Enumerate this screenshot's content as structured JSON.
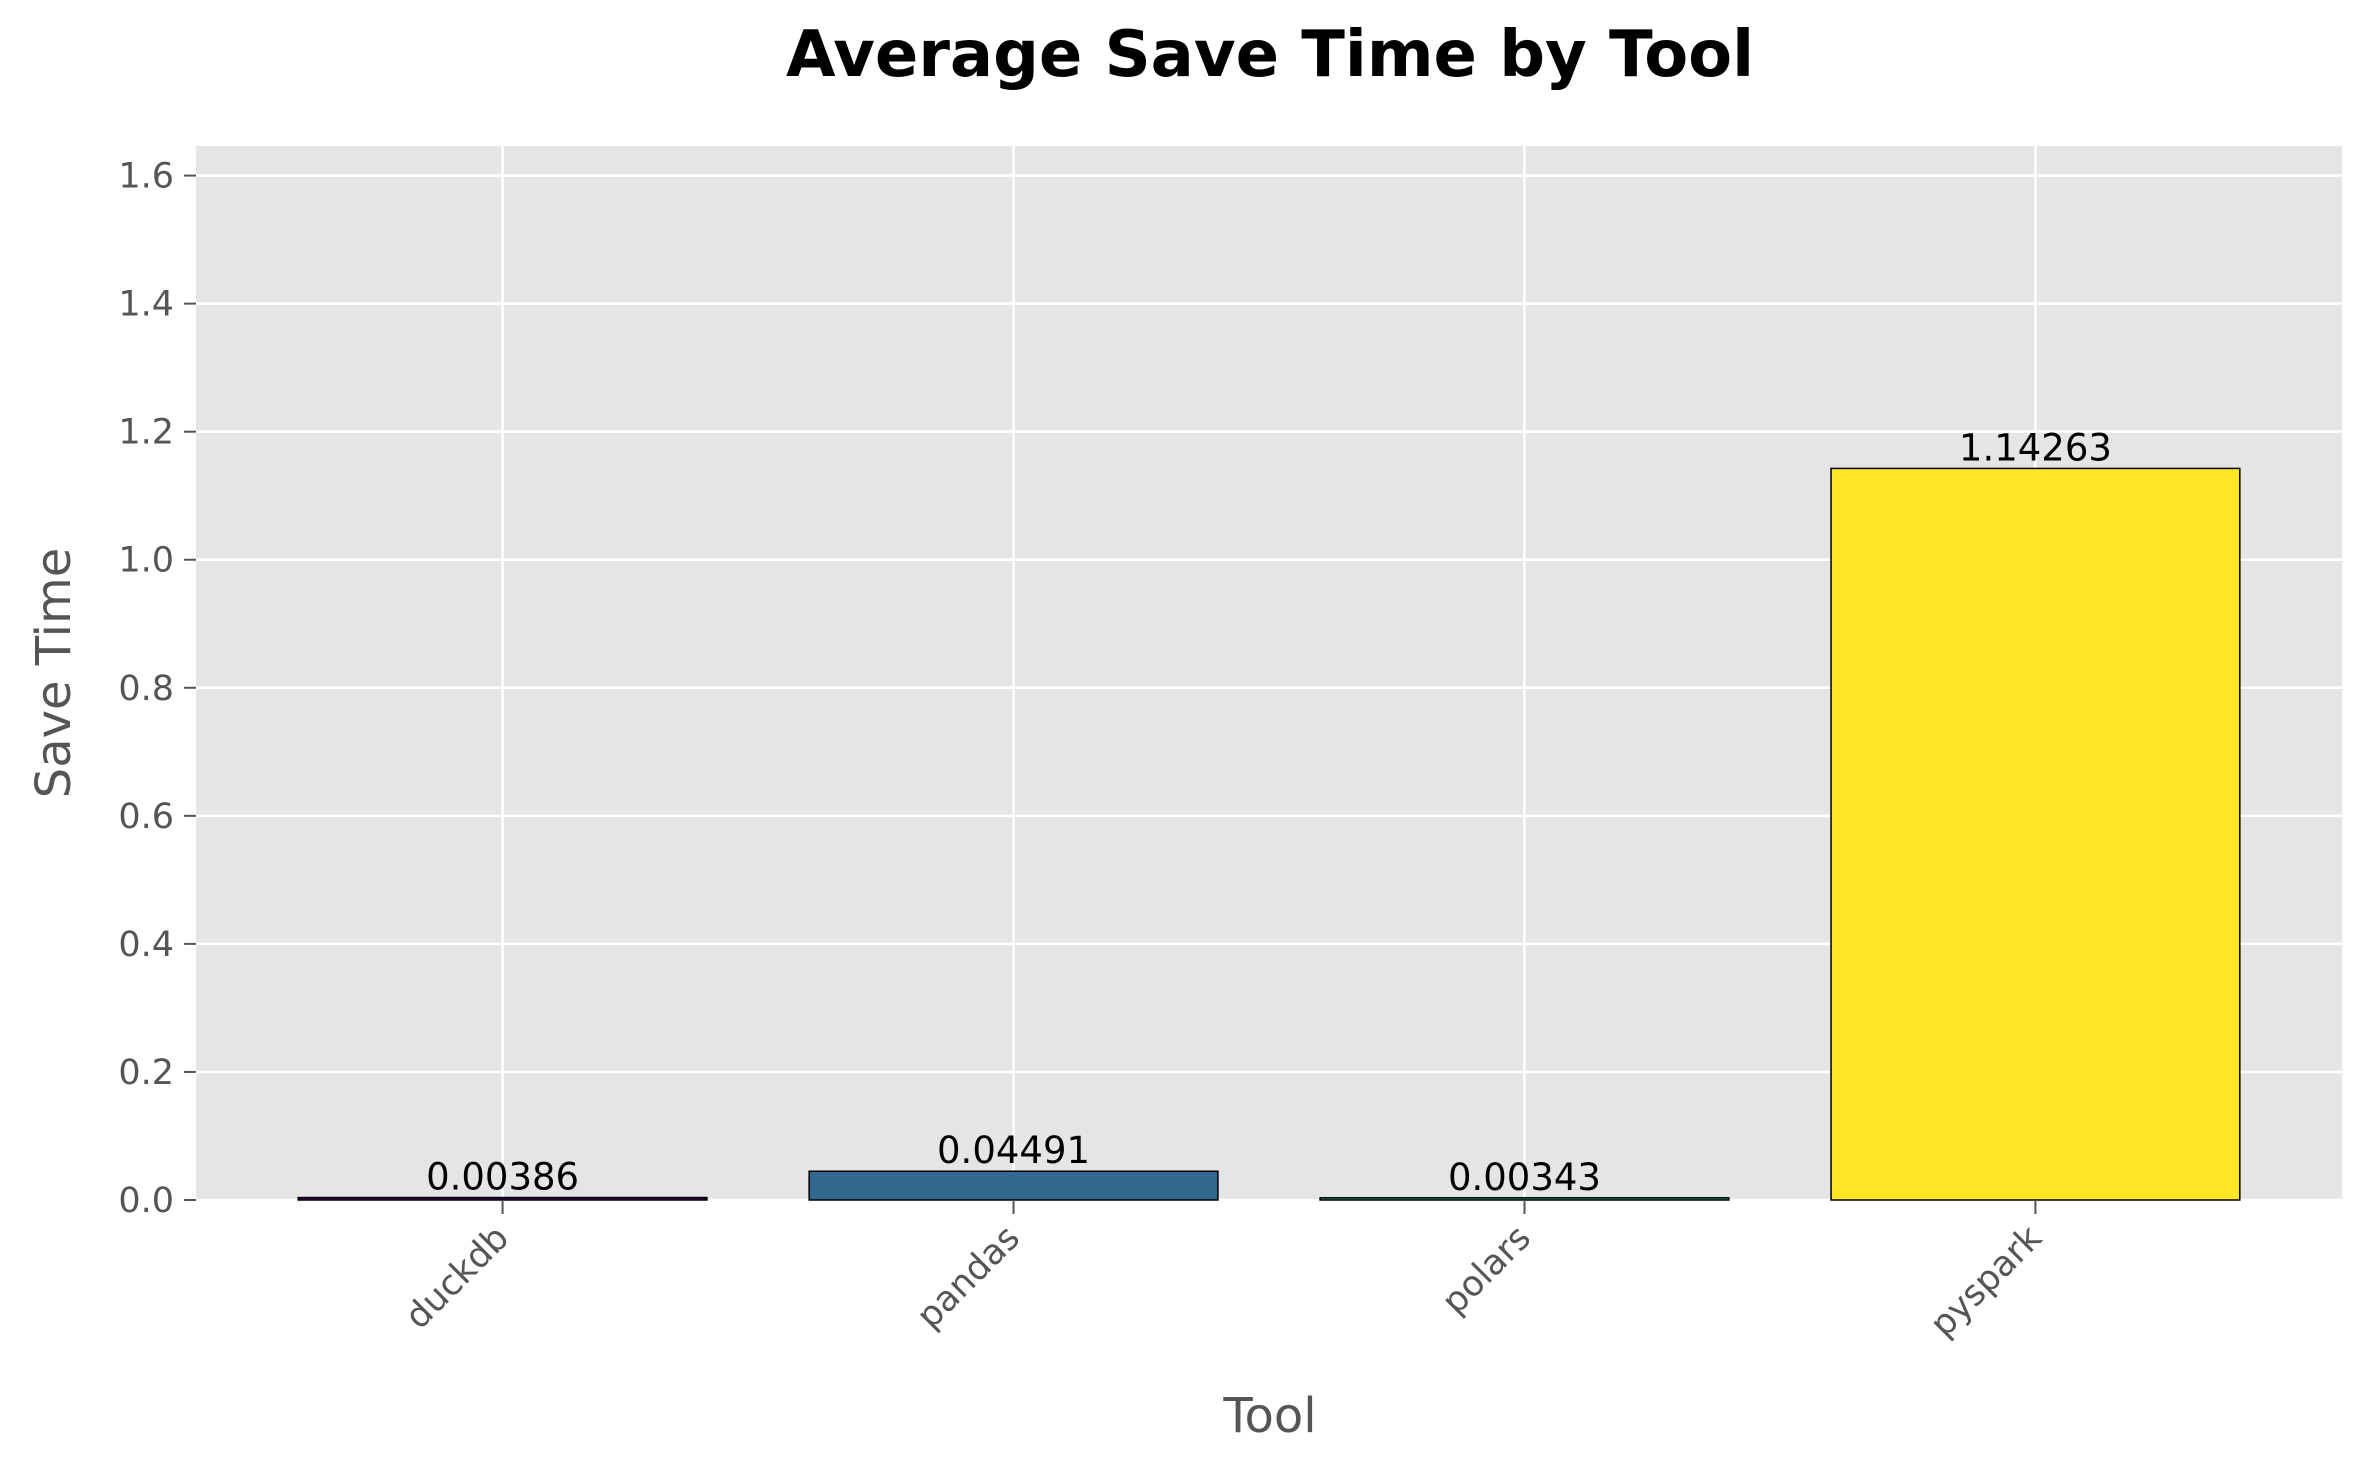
{
  "chart_data": {
    "type": "bar",
    "title": "Average Save Time by Tool",
    "xlabel": "Tool",
    "ylabel": "Save Time",
    "categories": [
      "duckdb",
      "pandas",
      "polars",
      "pyspark"
    ],
    "values": [
      0.00386,
      0.04491,
      0.00343,
      1.14263
    ],
    "value_labels": [
      "0.00386",
      "0.04491",
      "0.00343",
      "1.14263"
    ],
    "colors": [
      "#440154",
      "#31688e",
      "#35b779",
      "#fde725"
    ],
    "ylim": [
      0,
      1.6462
    ],
    "yticks": [
      0.0,
      0.2,
      0.4,
      0.6,
      0.8,
      1.0,
      1.2,
      1.4,
      1.6
    ],
    "ytick_labels": [
      "0.0",
      "0.2",
      "0.4",
      "0.6",
      "0.8",
      "1.0",
      "1.2",
      "1.4",
      "1.6"
    ],
    "grid": true,
    "legend": "none",
    "background": "#e5e5e5",
    "grid_color": "#ffffff"
  }
}
